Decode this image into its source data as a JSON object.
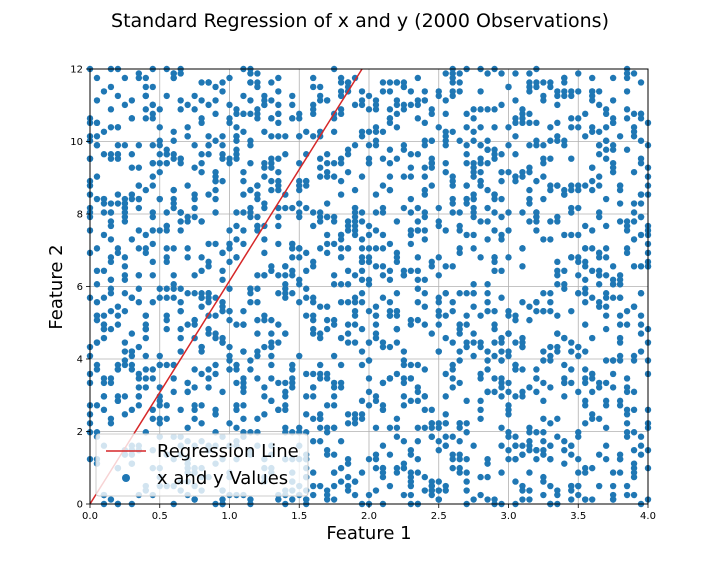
{
  "chart_data": {
    "type": "scatter",
    "title": "Standard Regression of x and y (2000 Observations)",
    "xlabel": "Feature 1",
    "ylabel": "Feature 2",
    "xlim": [
      0,
      4
    ],
    "ylim": [
      0,
      12
    ],
    "xticks": [
      "0.0",
      "0.5",
      "1.0",
      "1.5",
      "2.0",
      "2.5",
      "3.0",
      "3.5",
      "4.0"
    ],
    "yticks": [
      "0",
      "2",
      "4",
      "6",
      "8",
      "10",
      "12"
    ],
    "grid": true,
    "legend_position": "lower-left",
    "observations": 2000,
    "series": [
      {
        "name": "Regression Line",
        "kind": "line",
        "color": "#d62728",
        "points": [
          [
            0,
            0
          ],
          [
            1.95,
            12
          ]
        ]
      },
      {
        "name": "x and y Values",
        "kind": "scatter",
        "color": "#1f77b4",
        "count": 2000,
        "x_values": [
          0.0,
          0.05,
          0.1,
          0.15,
          0.2,
          0.25,
          0.3,
          0.35,
          0.4,
          0.45,
          0.5,
          0.55,
          0.6,
          0.65,
          0.7,
          0.75,
          0.8,
          0.85,
          0.9,
          0.95,
          1.0,
          1.05,
          1.1,
          1.15,
          1.2,
          1.25,
          1.3,
          1.35,
          1.4,
          1.45,
          1.5,
          1.55,
          1.6,
          1.65,
          1.7,
          1.75,
          1.8,
          1.85,
          1.9,
          1.95,
          2.0,
          2.05,
          2.1,
          2.15,
          2.2,
          2.25,
          2.3,
          2.35,
          2.4,
          2.45,
          2.5,
          2.55,
          2.6,
          2.65,
          2.7,
          2.75,
          2.8,
          2.85,
          2.9,
          2.95,
          3.0,
          3.05,
          3.1,
          3.15,
          3.2,
          3.25,
          3.3,
          3.35,
          3.4,
          3.45,
          3.5,
          3.55,
          3.6,
          3.65,
          3.7,
          3.75,
          3.8,
          3.85,
          3.9,
          3.95,
          4.0
        ],
        "y_min": 0,
        "y_max": 12,
        "distribution": "approximately uniform"
      }
    ]
  }
}
